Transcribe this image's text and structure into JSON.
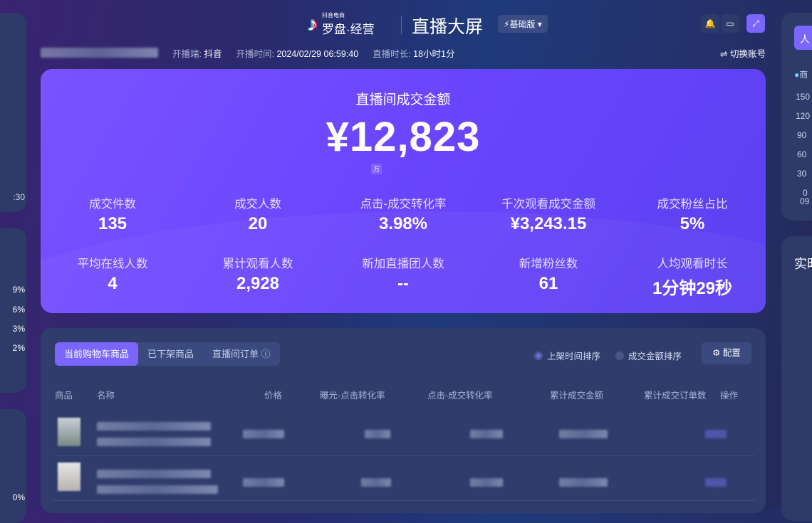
{
  "header": {
    "brand_small": "抖音电商",
    "brand": "罗盘·经营",
    "title": "直播大屏",
    "edition": "基础版",
    "icons": [
      "bell-icon",
      "monitor-icon",
      "fullscreen-icon"
    ]
  },
  "info": {
    "platform_label": "开播端:",
    "platform": "抖音",
    "start_label": "开播时间:",
    "start": "2024/02/29 06:59:40",
    "duration_label": "直播时长:",
    "duration": "18小时1分",
    "switch": "⇌ 切换账号"
  },
  "hero": {
    "title": "直播间成交金额",
    "value": "¥12,823",
    "unit": "万",
    "metrics": [
      {
        "label": "成交件数",
        "value": "135"
      },
      {
        "label": "成交人数",
        "value": "20"
      },
      {
        "label": "点击-成交转化率",
        "value": "3.98%"
      },
      {
        "label": "千次观看成交金额",
        "value": "¥3,243.15"
      },
      {
        "label": "成交粉丝占比",
        "value": "5%"
      },
      {
        "label": "平均在线人数",
        "value": "4"
      },
      {
        "label": "累计观看人数",
        "value": "2,928"
      },
      {
        "label": "新加直播团人数",
        "value": "--"
      },
      {
        "label": "新增粉丝数",
        "value": "61"
      },
      {
        "label": "人均观看时长",
        "value": "1分钟29秒"
      }
    ]
  },
  "products": {
    "tabs": [
      "当前购物车商品",
      "已下架商品",
      "直播间订单 ⓘ"
    ],
    "sort": [
      "上架时间排序",
      "成交金额排序"
    ],
    "config": "⚙ 配置",
    "columns": [
      "商品",
      "名称",
      "价格",
      "曝光-点击转化率",
      "点击-成交转化率",
      "累计成交金额",
      "累计成交订单数",
      "操作"
    ]
  },
  "left_panel": {
    "axis_label": ":30",
    "percents": [
      "9%",
      "6%",
      "3%",
      "2%"
    ],
    "bottom_percent": "0%"
  },
  "right_panel": {
    "tab": "人",
    "legend": "商",
    "yticks": [
      "150",
      "120",
      "90",
      "60",
      "30",
      "0"
    ],
    "xtick": "09",
    "section_title": "实时"
  }
}
